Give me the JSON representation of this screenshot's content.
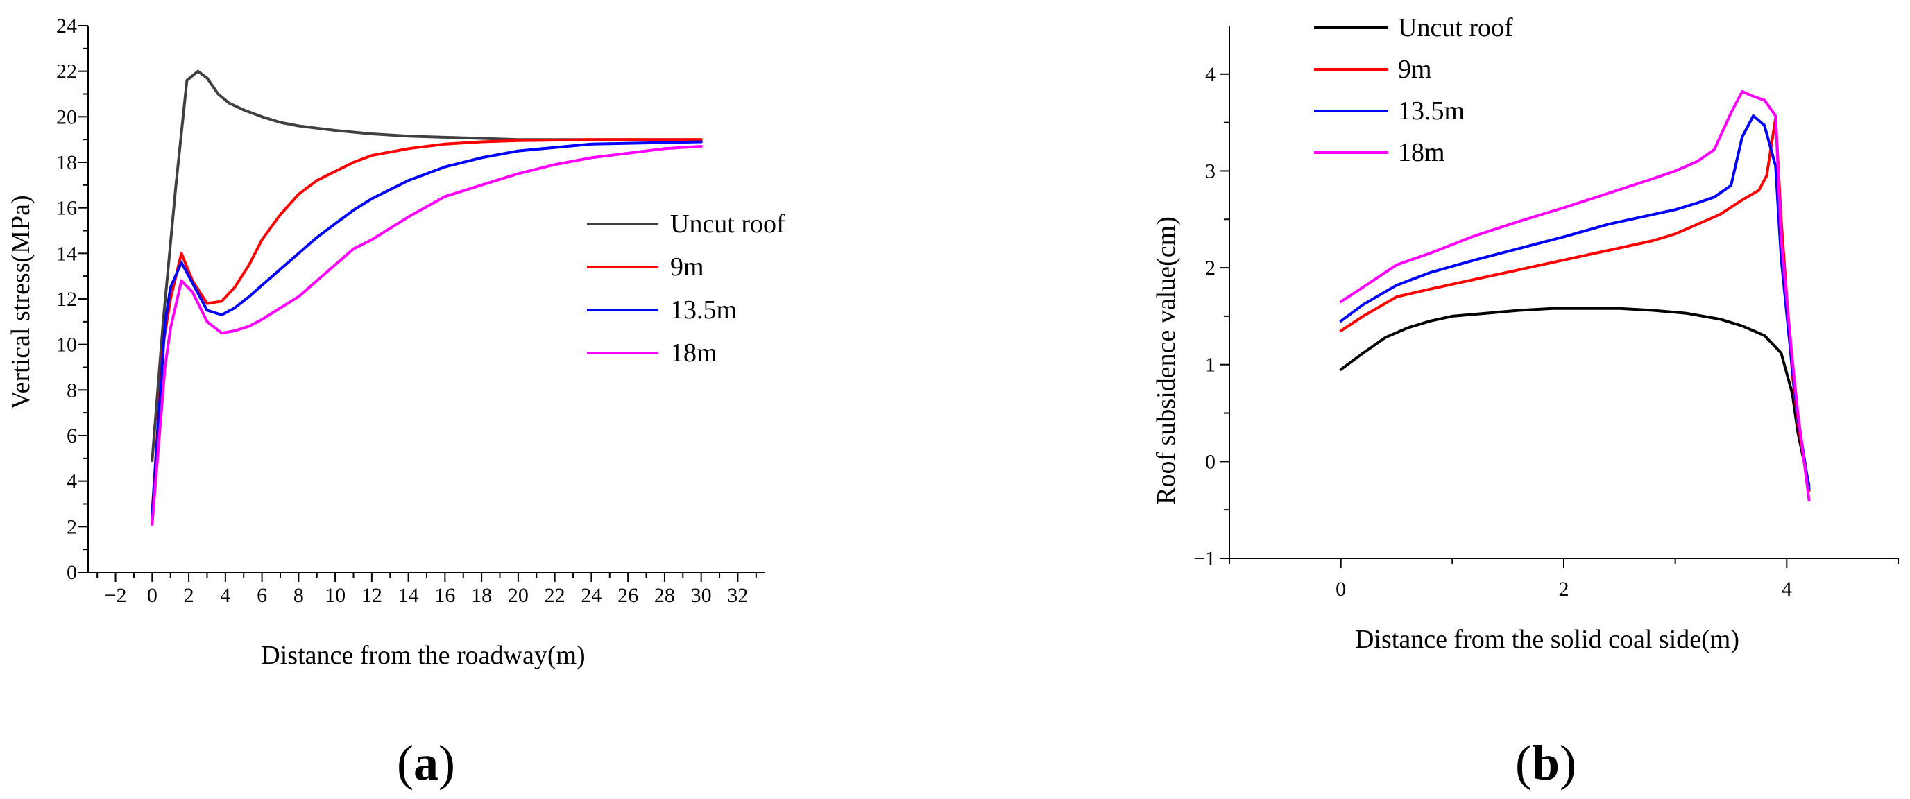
{
  "panels": {
    "a": {
      "open": "(",
      "letter": "a",
      "close": ")"
    },
    "b": {
      "open": "(",
      "letter": "b",
      "close": ")"
    }
  },
  "chart_data": [
    {
      "id": "a",
      "type": "line",
      "title": "",
      "xlabel": "Distance from the roadway(m)",
      "ylabel": "Vertical stress(MPa)",
      "xlim": [
        -3.5,
        33.5
      ],
      "ylim": [
        0,
        24
      ],
      "xticks": [
        -2,
        0,
        2,
        4,
        6,
        8,
        10,
        12,
        14,
        16,
        18,
        20,
        22,
        24,
        26,
        28,
        30,
        32
      ],
      "yticks": [
        0,
        2,
        4,
        6,
        8,
        10,
        12,
        14,
        16,
        18,
        20,
        22,
        24
      ],
      "legend_position": "right",
      "series": [
        {
          "name": "Uncut roof",
          "color": "#404040",
          "x": [
            0,
            0.6,
            1.3,
            1.9,
            2.5,
            3.0,
            3.6,
            4.2,
            5.0,
            6.0,
            7.0,
            8.0,
            9.0,
            10.0,
            12.0,
            14.0,
            16.0,
            18.0,
            20.0,
            22.0,
            25.0,
            28.0,
            30.0
          ],
          "y": [
            4.9,
            11.0,
            17.0,
            21.6,
            22.0,
            21.7,
            21.0,
            20.6,
            20.3,
            20.0,
            19.75,
            19.6,
            19.5,
            19.4,
            19.25,
            19.15,
            19.1,
            19.05,
            19.0,
            19.0,
            19.0,
            19.0,
            19.0
          ]
        },
        {
          "name": "9m",
          "color": "#ff0000",
          "x": [
            0,
            0.6,
            1.0,
            1.6,
            2.2,
            3.0,
            3.8,
            4.5,
            5.3,
            6.0,
            7.0,
            8.0,
            9.0,
            10.0,
            11.0,
            12.0,
            14.0,
            16.0,
            18.0,
            20.0,
            24.0,
            30.0
          ],
          "y": [
            2.6,
            10.0,
            12.0,
            14.0,
            12.8,
            11.8,
            11.9,
            12.5,
            13.5,
            14.6,
            15.7,
            16.6,
            17.2,
            17.6,
            18.0,
            18.3,
            18.6,
            18.8,
            18.9,
            18.95,
            19.0,
            19.0
          ],
          "xy_note": "x and y arrays align by index"
        },
        {
          "name": "13.5m",
          "color": "#0000ff",
          "x": [
            0,
            0.7,
            1.0,
            1.6,
            2.2,
            3.0,
            3.8,
            4.5,
            5.3,
            6.0,
            7.0,
            8.0,
            9.0,
            10.0,
            11.0,
            12.0,
            14.0,
            16.0,
            18.0,
            20.0,
            24.0,
            30.0
          ],
          "y": [
            2.5,
            10.9,
            12.5,
            13.6,
            12.7,
            11.5,
            11.3,
            11.6,
            12.1,
            12.6,
            13.3,
            14.0,
            14.7,
            15.3,
            15.9,
            16.4,
            17.2,
            17.8,
            18.2,
            18.5,
            18.8,
            18.9
          ]
        },
        {
          "name": "18m",
          "color": "#ff00ff",
          "x": [
            0,
            0.7,
            1.0,
            1.6,
            2.2,
            3.0,
            3.8,
            4.5,
            5.3,
            6.0,
            7.0,
            8.0,
            9.0,
            10.0,
            11.0,
            12.0,
            14.0,
            16.0,
            18.0,
            20.0,
            22.0,
            24.0,
            26.0,
            28.0,
            30.0
          ],
          "y": [
            2.1,
            9.0,
            10.7,
            12.8,
            12.3,
            11.0,
            10.5,
            10.6,
            10.8,
            11.1,
            11.6,
            12.1,
            12.8,
            13.5,
            14.2,
            14.6,
            15.6,
            16.5,
            17.0,
            17.5,
            17.9,
            18.2,
            18.4,
            18.6,
            18.7
          ]
        }
      ]
    },
    {
      "id": "b",
      "type": "line",
      "title": "",
      "xlabel": "Distance from the solid coal side(m)",
      "ylabel": "Roof subsidence value(cm)",
      "xlim": [
        -1,
        5
      ],
      "ylim": [
        -1,
        4.5
      ],
      "xticks": [
        0,
        2,
        4
      ],
      "yticks": [
        -1,
        0,
        1,
        2,
        3,
        4
      ],
      "ytick_labels": [
        "−1",
        "0",
        "1",
        "2",
        "3",
        "4"
      ],
      "legend_position": "top-left",
      "series": [
        {
          "name": "Uncut roof",
          "color": "#000000",
          "x": [
            0,
            0.2,
            0.4,
            0.6,
            0.8,
            1.0,
            1.3,
            1.6,
            1.9,
            2.2,
            2.5,
            2.8,
            3.1,
            3.4,
            3.6,
            3.8,
            3.95,
            4.05,
            4.1,
            4.2
          ],
          "y": [
            0.95,
            1.12,
            1.28,
            1.38,
            1.45,
            1.5,
            1.53,
            1.56,
            1.58,
            1.58,
            1.58,
            1.56,
            1.53,
            1.47,
            1.4,
            1.3,
            1.12,
            0.7,
            0.3,
            -0.25
          ]
        },
        {
          "name": "9m",
          "color": "#ff0000",
          "x": [
            0,
            0.2,
            0.5,
            0.8,
            1.2,
            1.6,
            2.0,
            2.4,
            2.8,
            3.0,
            3.2,
            3.4,
            3.6,
            3.75,
            3.82,
            3.9,
            3.95,
            4.05,
            4.1,
            4.2
          ],
          "y": [
            1.35,
            1.5,
            1.7,
            1.78,
            1.88,
            1.98,
            2.08,
            2.18,
            2.28,
            2.35,
            2.45,
            2.55,
            2.7,
            2.8,
            2.95,
            3.55,
            2.5,
            0.9,
            0.4,
            -0.3
          ]
        },
        {
          "name": "13.5m",
          "color": "#0000ff",
          "x": [
            0,
            0.2,
            0.5,
            0.8,
            1.2,
            1.6,
            2.0,
            2.4,
            2.8,
            3.0,
            3.2,
            3.35,
            3.5,
            3.6,
            3.7,
            3.8,
            3.9,
            3.95,
            4.05,
            4.1,
            4.2
          ],
          "y": [
            1.45,
            1.62,
            1.82,
            1.95,
            2.08,
            2.2,
            2.32,
            2.45,
            2.55,
            2.6,
            2.67,
            2.73,
            2.85,
            3.35,
            3.57,
            3.47,
            3.05,
            2.1,
            0.95,
            0.45,
            -0.28
          ]
        },
        {
          "name": "18m",
          "color": "#ff00ff",
          "x": [
            0,
            0.2,
            0.5,
            0.8,
            1.2,
            1.6,
            2.0,
            2.4,
            2.8,
            3.0,
            3.2,
            3.35,
            3.5,
            3.6,
            3.7,
            3.8,
            3.9,
            3.95,
            4.05,
            4.1,
            4.2
          ],
          "y": [
            1.65,
            1.8,
            2.03,
            2.15,
            2.33,
            2.48,
            2.62,
            2.77,
            2.92,
            3.0,
            3.1,
            3.22,
            3.6,
            3.82,
            3.77,
            3.73,
            3.57,
            2.3,
            1.05,
            0.5,
            -0.4
          ]
        }
      ]
    }
  ]
}
